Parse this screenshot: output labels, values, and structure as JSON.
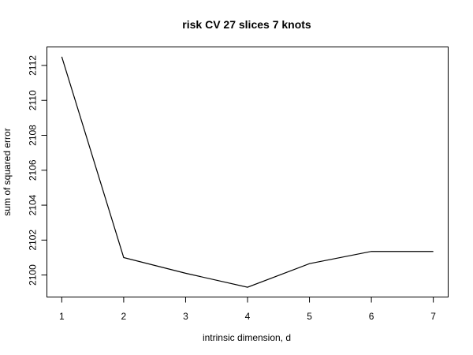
{
  "chart_data": {
    "type": "line",
    "title": "risk CV  27  slices  7 knots",
    "xlabel": "intrinsic dimension, d",
    "ylabel": "sum of squared error",
    "x": [
      1,
      2,
      3,
      4,
      5,
      6,
      7
    ],
    "series": [
      {
        "values": [
          2112.5,
          2101.0,
          2100.1,
          2099.3,
          2100.65,
          2101.35,
          2101.35
        ]
      }
    ],
    "xlim": [
      0.76,
      7.24
    ],
    "ylim": [
      2098.74,
      2113.06
    ],
    "xticks": [
      1,
      2,
      3,
      4,
      5,
      6,
      7
    ],
    "yticks": [
      2100,
      2102,
      2104,
      2106,
      2108,
      2110,
      2112
    ],
    "grid": false,
    "line_color": "#000000"
  }
}
